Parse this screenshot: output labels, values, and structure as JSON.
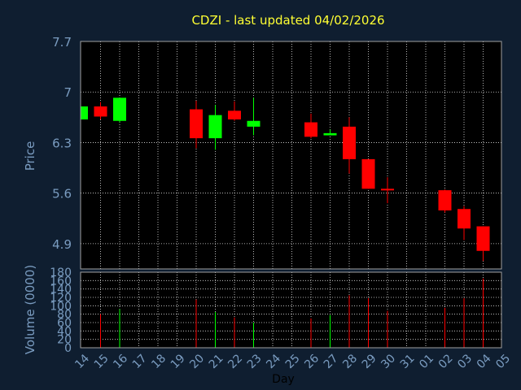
{
  "chart_data": {
    "type": "candlestick",
    "title": "CDZI - last updated 04/02/2026",
    "ylabel": "Price",
    "volume_label": "Volume (0000)",
    "xlabel": "Day",
    "ylim": [
      4.55,
      7.7
    ],
    "price_ticks": [
      "7.7",
      "7",
      "6.3",
      "5.6",
      "4.9"
    ],
    "volume_ylim": [
      0,
      180
    ],
    "volume_ticks": [
      "180",
      "160",
      "140",
      "120",
      "100",
      "80",
      "60",
      "40",
      "20",
      "0"
    ],
    "x_labels": [
      "14",
      "15",
      "16",
      "17",
      "18",
      "19",
      "20",
      "21",
      "22",
      "23",
      "24",
      "25",
      "26",
      "27",
      "28",
      "29",
      "30",
      "31",
      "01",
      "02",
      "03",
      "04",
      "05"
    ],
    "colors": {
      "up": "#00ff00",
      "down": "#ff0000",
      "background": "#0f1e30",
      "text": "#7a9cc0",
      "title": "#ffff33"
    },
    "candles": [
      {
        "day": "14",
        "open": 6.62,
        "close": 6.8,
        "high": 6.8,
        "low": 6.62,
        "volume": 0
      },
      {
        "day": "15",
        "open": 6.8,
        "close": 6.66,
        "high": 6.86,
        "low": 6.62,
        "volume": 80
      },
      {
        "day": "16",
        "open": 6.6,
        "close": 6.92,
        "high": 6.92,
        "low": 6.58,
        "volume": 92
      },
      {
        "day": "20",
        "open": 6.76,
        "close": 6.36,
        "high": 6.88,
        "low": 6.22,
        "volume": 115
      },
      {
        "day": "21",
        "open": 6.36,
        "close": 6.68,
        "high": 6.82,
        "low": 6.2,
        "volume": 85
      },
      {
        "day": "22",
        "open": 6.74,
        "close": 6.62,
        "high": 6.87,
        "low": 6.6,
        "volume": 72
      },
      {
        "day": "23",
        "open": 6.52,
        "close": 6.6,
        "high": 6.92,
        "low": 6.4,
        "volume": 60
      },
      {
        "day": "26",
        "open": 6.58,
        "close": 6.38,
        "high": 6.7,
        "low": 6.36,
        "volume": 70
      },
      {
        "day": "27",
        "open": 6.4,
        "close": 6.43,
        "high": 6.48,
        "low": 6.4,
        "volume": 78
      },
      {
        "day": "28",
        "open": 6.52,
        "close": 6.07,
        "high": 6.65,
        "low": 5.87,
        "volume": 125
      },
      {
        "day": "29",
        "open": 6.07,
        "close": 5.66,
        "high": 6.07,
        "low": 5.66,
        "volume": 118
      },
      {
        "day": "30",
        "open": 5.66,
        "close": 5.64,
        "high": 5.82,
        "low": 5.46,
        "volume": 88
      },
      {
        "day": "02",
        "open": 5.64,
        "close": 5.36,
        "high": 5.65,
        "low": 5.33,
        "volume": 95
      },
      {
        "day": "03",
        "open": 5.38,
        "close": 5.11,
        "high": 5.42,
        "low": 4.95,
        "volume": 118
      },
      {
        "day": "04",
        "open": 5.14,
        "close": 4.8,
        "high": 5.14,
        "low": 4.66,
        "volume": 165
      }
    ]
  }
}
